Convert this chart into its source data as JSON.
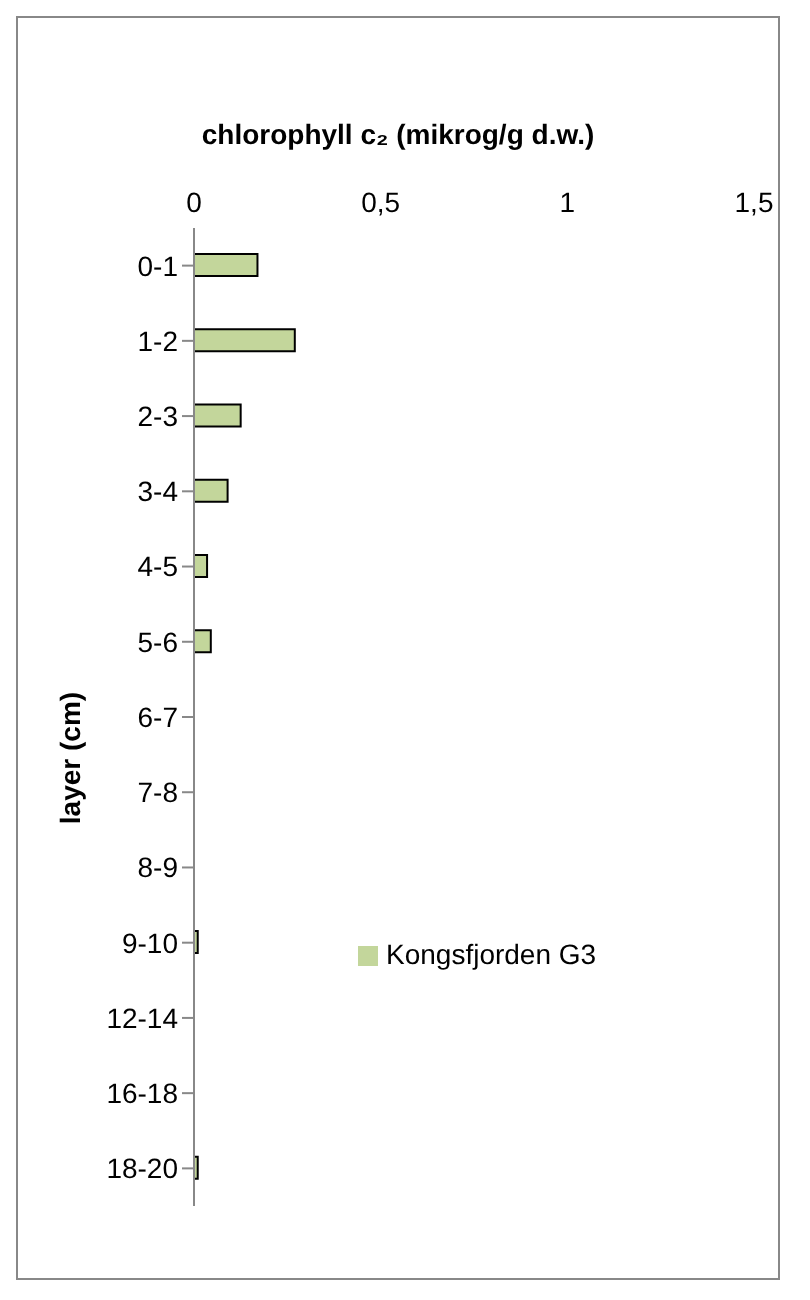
{
  "chart_data": {
    "type": "bar",
    "orientation": "horizontal",
    "title": "chlorophyll  c₂ (mikrog/g d.w.)",
    "ylabel": "layer (cm)",
    "categories": [
      "0-1",
      "1-2",
      "2-3",
      "3-4",
      "4-5",
      "5-6",
      "6-7",
      "7-8",
      "8-9",
      "9-10",
      "12-14",
      "16-18",
      "18-20"
    ],
    "series": [
      {
        "name": "Kongsfjorden G3",
        "color": "#c3d69b",
        "values": [
          0.17,
          0.27,
          0.125,
          0.09,
          0.035,
          0.045,
          null,
          null,
          null,
          0.01,
          null,
          null,
          0.01
        ]
      }
    ],
    "xlim": [
      0,
      1.5
    ],
    "xticks": [
      0,
      {
        "value": 0.5,
        "label": "0,5"
      },
      1,
      {
        "value": 1.5,
        "label": "1,5"
      }
    ],
    "grid": false,
    "legend": "right"
  }
}
